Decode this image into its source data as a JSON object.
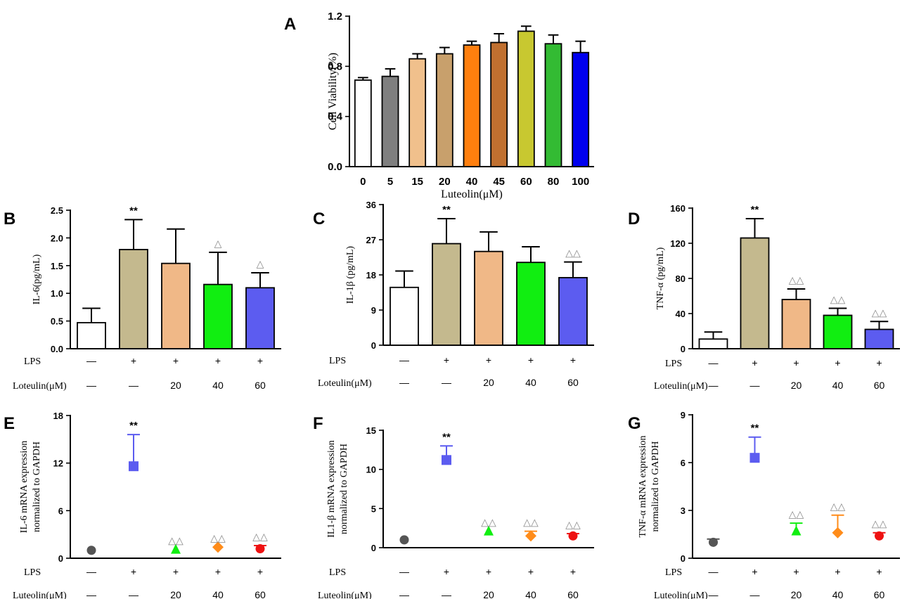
{
  "chart_data": [
    {
      "panel": "A",
      "type": "bar",
      "title": "",
      "ylabel": "Cell Viability(%)",
      "xlabel": "Luteolin(μM)",
      "ylim": [
        0,
        1.2
      ],
      "yticks": [
        "0.0",
        "0.4",
        "0.8",
        "1.2"
      ],
      "categories": [
        "0",
        "5",
        "15",
        "20",
        "40",
        "45",
        "60",
        "80",
        "100"
      ],
      "values": [
        0.69,
        0.72,
        0.86,
        0.9,
        0.97,
        0.99,
        1.08,
        0.98,
        0.91
      ],
      "errors": [
        0.02,
        0.06,
        0.04,
        0.05,
        0.03,
        0.07,
        0.04,
        0.07,
        0.09
      ],
      "colors": [
        "#ffffff",
        "#7f7f7f",
        "#f0c08c",
        "#c8a06c",
        "#ff7f0e",
        "#c07030",
        "#c8c830",
        "#33bb33",
        "#0000ee"
      ]
    },
    {
      "panel": "B",
      "type": "bar",
      "ylabel": "IL-6(pg/mL)",
      "ylim": [
        0,
        2.5
      ],
      "yticks": [
        "0.0",
        "0.5",
        "1.0",
        "1.5",
        "2.0",
        "2.5"
      ],
      "values": [
        0.47,
        1.79,
        1.54,
        1.16,
        1.1
      ],
      "errors": [
        0.26,
        0.54,
        0.62,
        0.58,
        0.27
      ],
      "colors": [
        "#ffffff",
        "#c4b98e",
        "#f0b887",
        "#11ee11",
        "#5c5cf0"
      ],
      "annotations": [
        "",
        "**",
        "",
        "△",
        "△"
      ],
      "lps": [
        "—",
        "+",
        "+",
        "+",
        "+"
      ],
      "luteolin": [
        "—",
        "—",
        "20",
        "40",
        "60"
      ],
      "lps_label": "LPS",
      "luteolin_label": "Loteulin(μM)"
    },
    {
      "panel": "C",
      "type": "bar",
      "ylabel": "IL-1β (pg/mL)",
      "ylim": [
        0,
        36
      ],
      "yticks": [
        "0",
        "9",
        "18",
        "27",
        "36"
      ],
      "values": [
        14.8,
        26.0,
        24.0,
        21.2,
        17.3
      ],
      "errors": [
        4.2,
        6.4,
        5.0,
        4.0,
        4.0
      ],
      "colors": [
        "#ffffff",
        "#c4b98e",
        "#f0b887",
        "#11ee11",
        "#5c5cf0"
      ],
      "annotations": [
        "",
        "**",
        "",
        "",
        "△△"
      ],
      "lps": [
        "—",
        "+",
        "+",
        "+",
        "+"
      ],
      "luteolin": [
        "—",
        "—",
        "20",
        "40",
        "60"
      ],
      "lps_label": "LPS",
      "luteolin_label": "Loteulin(μM)"
    },
    {
      "panel": "D",
      "type": "bar",
      "ylabel": "TNF-α (pg/mL)",
      "ylim": [
        0,
        160
      ],
      "yticks": [
        "0",
        "40",
        "80",
        "120",
        "160"
      ],
      "values": [
        11,
        126,
        56,
        38,
        22
      ],
      "errors": [
        8,
        22,
        12,
        8,
        9
      ],
      "colors": [
        "#ffffff",
        "#c4b98e",
        "#f0b887",
        "#11ee11",
        "#5c5cf0"
      ],
      "annotations": [
        "",
        "**",
        "△△",
        "△△",
        "△△"
      ],
      "lps": [
        "—",
        "+",
        "+",
        "+",
        "+"
      ],
      "luteolin": [
        "—",
        "—",
        "20",
        "40",
        "60"
      ],
      "lps_label": "LPS",
      "luteolin_label": "Loteulin(μM)"
    },
    {
      "panel": "E",
      "type": "scatter",
      "ylabel": "IL-6 mRNA expression",
      "ylabel2": "normalized to GAPDH",
      "ylim": [
        0,
        18
      ],
      "yticks": [
        "0",
        "6",
        "12",
        "18"
      ],
      "values": [
        1.0,
        11.6,
        1.1,
        1.4,
        1.2
      ],
      "errors": [
        0,
        4.0,
        0,
        0,
        0.4
      ],
      "markers": [
        "circle",
        "square",
        "triangle",
        "diamond",
        "circle"
      ],
      "colors": [
        "#555555",
        "#5c5cf0",
        "#11ee11",
        "#ff8c1a",
        "#ee1111"
      ],
      "annotations": [
        "",
        "**",
        "△△",
        "△△",
        "△△"
      ],
      "lps": [
        "—",
        "+",
        "+",
        "+",
        "+"
      ],
      "luteolin": [
        "—",
        "—",
        "20",
        "40",
        "60"
      ],
      "lps_label": "LPS",
      "luteolin_label": "Luteolin(μM)"
    },
    {
      "panel": "F",
      "type": "scatter",
      "ylabel": "IL1-β  mRNA expression",
      "ylabel2": "normalized to GAPDH",
      "ylim": [
        0,
        15
      ],
      "yticks": [
        "0",
        "5",
        "10",
        "15"
      ],
      "values": [
        1.0,
        11.2,
        2.1,
        1.5,
        1.5
      ],
      "errors": [
        0,
        1.8,
        0,
        0.6,
        0.3
      ],
      "markers": [
        "circle",
        "square",
        "triangle",
        "diamond",
        "circle"
      ],
      "colors": [
        "#555555",
        "#5c5cf0",
        "#11ee11",
        "#ff8c1a",
        "#ee1111"
      ],
      "annotations": [
        "",
        "**",
        "△△",
        "△△",
        "△△"
      ],
      "lps": [
        "—",
        "+",
        "+",
        "+",
        "+"
      ],
      "luteolin": [
        "—",
        "—",
        "20",
        "40",
        "60"
      ],
      "lps_label": "LPS",
      "luteolin_label": "Luteolin(μM)"
    },
    {
      "panel": "G",
      "type": "scatter",
      "ylabel": "TNF-α  mRNA expression",
      "ylabel2": "normalized to GAPDH",
      "ylim": [
        0,
        9
      ],
      "yticks": [
        "0",
        "3",
        "6",
        "9"
      ],
      "values": [
        1.0,
        6.3,
        1.7,
        1.6,
        1.4
      ],
      "errors": [
        0.2,
        1.3,
        0.5,
        1.1,
        0.2
      ],
      "markers": [
        "circle",
        "square",
        "triangle",
        "diamond",
        "circle"
      ],
      "colors": [
        "#555555",
        "#5c5cf0",
        "#11ee11",
        "#ff8c1a",
        "#ee1111"
      ],
      "annotations": [
        "",
        "**",
        "△△",
        "△△",
        "△△"
      ],
      "lps": [
        "—",
        "+",
        "+",
        "+",
        "+"
      ],
      "luteolin": [
        "—",
        "—",
        "20",
        "40",
        "60"
      ],
      "lps_label": "LPS",
      "luteolin_label": "Luteolin(μM)"
    }
  ]
}
